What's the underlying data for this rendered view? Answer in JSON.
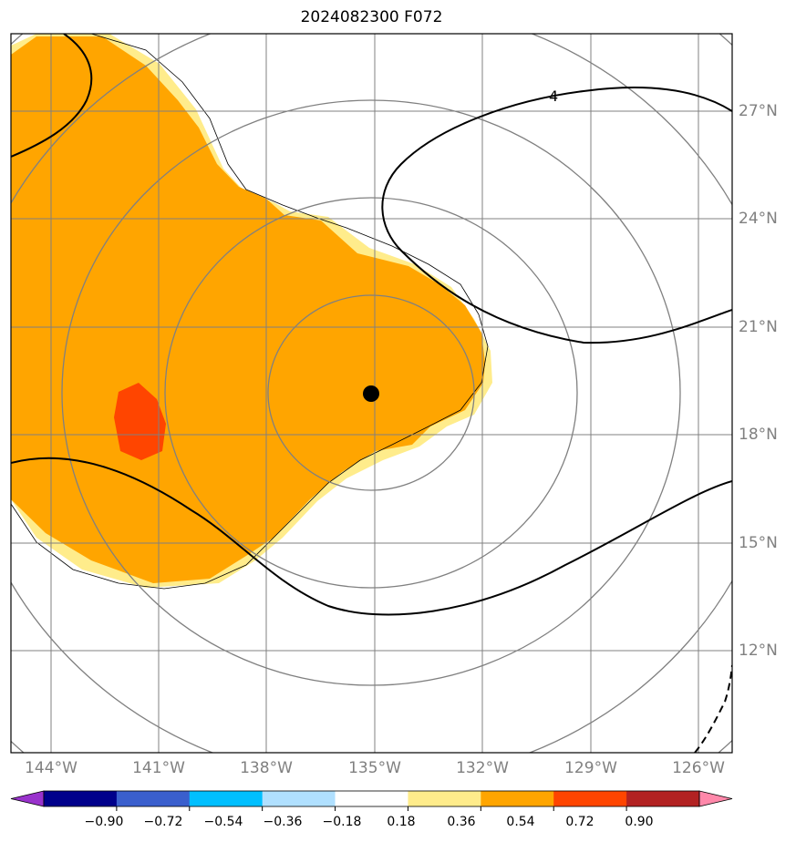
{
  "title": "2024082300 F072",
  "map": {
    "lon_labels": [
      "144°W",
      "141°W",
      "138°W",
      "135°W",
      "132°W",
      "129°W",
      "126°W"
    ],
    "lat_labels": [
      "27°N",
      "24°N",
      "21°N",
      "18°N",
      "15°N",
      "12°N"
    ],
    "contour_label": "4",
    "storm_center": {
      "lon": -135.0,
      "lat": 19.1
    }
  },
  "colorbar": {
    "ticks": [
      "−0.90",
      "−0.72",
      "−0.54",
      "−0.36",
      "−0.18",
      "0.18",
      "0.36",
      "0.54",
      "0.72",
      "0.90"
    ],
    "colors": [
      "#9932cc",
      "#00008b",
      "#3a5fcd",
      "#00bfff",
      "#b0e0ff",
      "#ffffff",
      "#ffec8b",
      "#ffa500",
      "#ff4500",
      "#b22222",
      "#ff88aa"
    ]
  },
  "colors": {
    "fill_light": "#ffec8b",
    "fill_main": "#ffa500",
    "fill_high": "#ff4500",
    "grid": "#808080",
    "contour": "#000000"
  }
}
